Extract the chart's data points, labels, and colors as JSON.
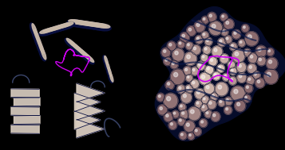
{
  "background_color": "#000000",
  "figsize": [
    3.57,
    1.89
  ],
  "dpi": 100,
  "helix_light": "#c8b8a8",
  "helix_dark": "#0a1040",
  "helix_mid": "#4a5888",
  "sheet_light": "#d8ccc0",
  "sheet_dark": "#0a1040",
  "ligand_color": "#cc00ee",
  "sphere_light": "#e8d8cc",
  "sphere_dark": "#0a1848",
  "sphere_rim": "#1a2858",
  "gap_color": "#060c2a"
}
